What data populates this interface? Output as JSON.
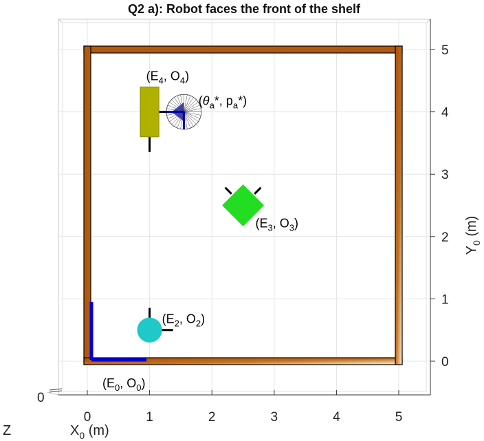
{
  "chart_data": {
    "type": "scatter",
    "title": "Q2 a): Robot faces the front of the shelf",
    "xlabel": "X",
    "xlabel_sub": "0",
    "xlabel_unit": " (m)",
    "ylabel": "Y",
    "ylabel_sub": "0",
    "ylabel_unit": " (m)",
    "zlabel": "Z",
    "z_tick": "0",
    "xlim": [
      -0.4,
      5.5
    ],
    "ylim": [
      -0.4,
      5.5
    ],
    "x_ticks": [
      0,
      1,
      2,
      3,
      4,
      5
    ],
    "y_ticks": [
      0,
      1,
      2,
      3,
      4,
      5
    ],
    "grid": true,
    "room": {
      "x_range": [
        0,
        5
      ],
      "y_range": [
        0,
        5
      ],
      "wall_color": "#b05a10",
      "wall_light_color": "#f5deb3"
    },
    "objects": [
      {
        "name": "frame_0",
        "label": "(E0, O0)",
        "label_main": "E",
        "label_sub1": "0",
        "label_sep": ", O",
        "label_sub2": "0",
        "x": 0,
        "y": 0,
        "shape": "axes",
        "color": "#0000dd",
        "axis_length": 0.95
      },
      {
        "name": "robot_2",
        "label": "(E2, O2)",
        "label_main": "E",
        "label_sub1": "2",
        "label_sep": ", O",
        "label_sub2": "2",
        "x": 1.0,
        "y": 0.5,
        "shape": "circle",
        "radius": 0.2,
        "color": "#20c8c8",
        "heading_deg": 0
      },
      {
        "name": "box_3",
        "label": "(E3, O3)",
        "label_main": "E",
        "label_sub1": "3",
        "label_sep": ", O",
        "label_sub2": "3",
        "x": 2.5,
        "y": 2.5,
        "shape": "diamond",
        "size": 0.48,
        "color": "#22dd22"
      },
      {
        "name": "shelf_4",
        "label": "(E4, O4)",
        "label_main": "E",
        "label_sub1": "4",
        "label_sep": ", O",
        "label_sub2": "4",
        "x": 1.0,
        "y": 4.0,
        "shape": "rect",
        "width": 0.3,
        "height": 0.8,
        "color": "#b0b000"
      },
      {
        "name": "viewpoint_a",
        "label": "(θa*, pa*)",
        "label_theta": "θ",
        "label_sub_a": "a",
        "label_star": "*, p",
        "label_end": "*)",
        "x": 1.55,
        "y": 4.0,
        "shape": "fan",
        "radius": 0.28,
        "color": "#0000aa"
      }
    ]
  }
}
